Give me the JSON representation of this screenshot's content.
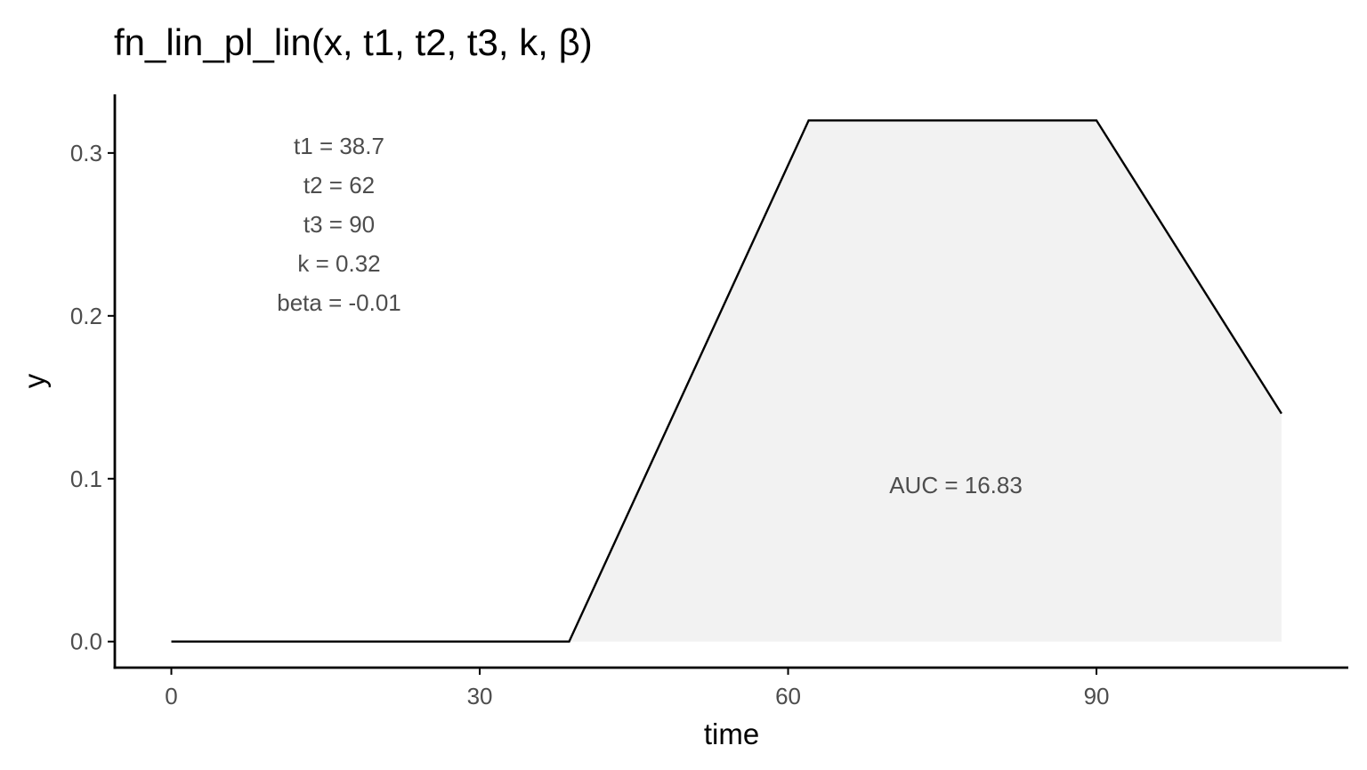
{
  "chart_data": {
    "type": "line",
    "title": "fn_lin_pl_lin(x, t1, t2, t3, k, β)",
    "xlabel": "time",
    "ylabel": "y",
    "xlim": [
      -5.5,
      114.5
    ],
    "ylim": [
      -0.016,
      0.336
    ],
    "x_ticks": [
      0,
      30,
      60,
      90
    ],
    "x_tick_labels": [
      "0",
      "30",
      "60",
      "90"
    ],
    "y_ticks": [
      0.0,
      0.1,
      0.2,
      0.3
    ],
    "y_tick_labels": [
      "0.0",
      "0.1",
      "0.2",
      "0.3"
    ],
    "grid": false,
    "legend": "none",
    "series": [
      {
        "x": [
          0,
          38.7,
          62,
          90,
          108
        ],
        "y": [
          0,
          0,
          0.32,
          0.32,
          0.14
        ]
      }
    ],
    "auc_region": {
      "x": [
        38.7,
        62,
        90,
        108
      ],
      "y": [
        0,
        0.32,
        0.32,
        0.14
      ]
    },
    "annotations": {
      "params": [
        "t1 = 38.7",
        "t2 = 62",
        "t3 = 90",
        "k = 0.32",
        "beta = -0.01"
      ],
      "auc": "AUC = 16.83"
    },
    "colors": {
      "line": "#000000",
      "fill": "#f2f2f2",
      "axis": "#000000",
      "tick_text": "#4d4d4d"
    }
  }
}
